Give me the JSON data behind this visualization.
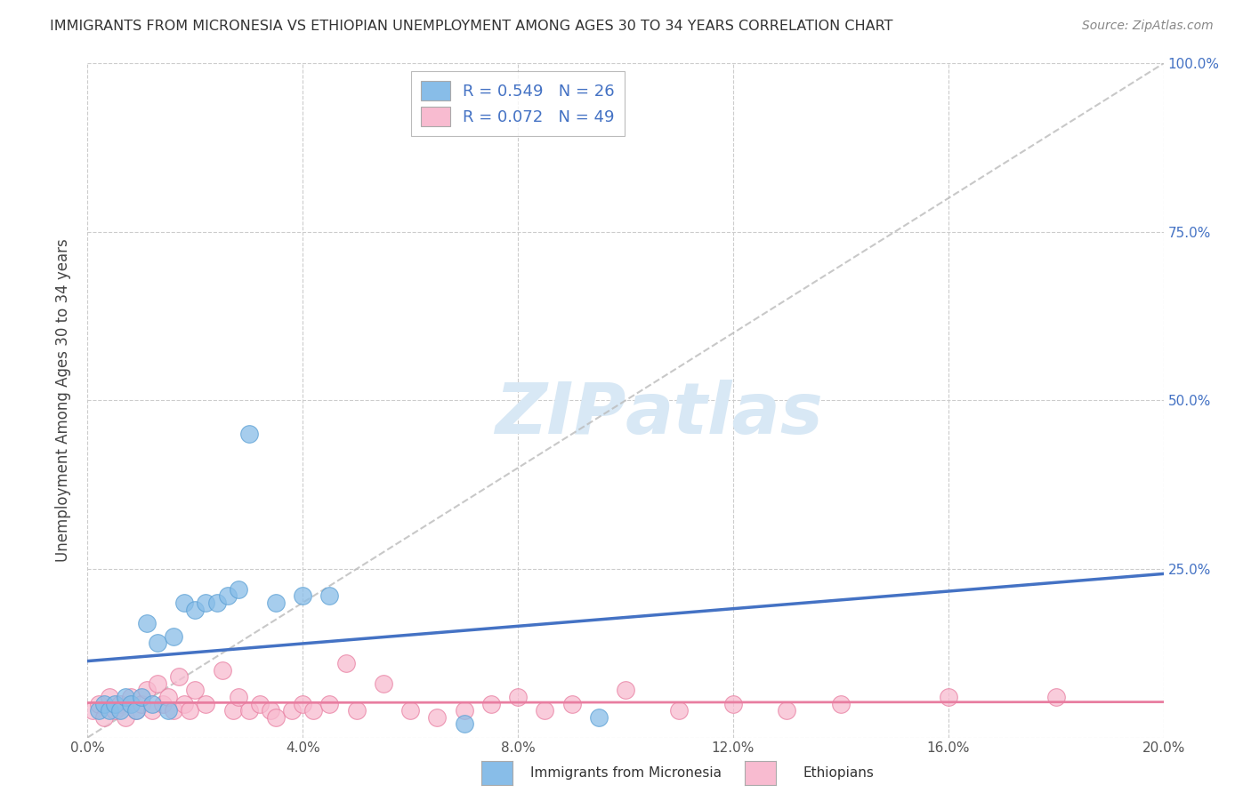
{
  "title": "IMMIGRANTS FROM MICRONESIA VS ETHIOPIAN UNEMPLOYMENT AMONG AGES 30 TO 34 YEARS CORRELATION CHART",
  "source": "Source: ZipAtlas.com",
  "ylabel": "Unemployment Among Ages 30 to 34 years",
  "xlabel_legend1": "Immigrants from Micronesia",
  "xlabel_legend2": "Ethiopians",
  "xlim": [
    0.0,
    0.2
  ],
  "ylim": [
    0.0,
    1.0
  ],
  "xticks": [
    0.0,
    0.04,
    0.08,
    0.12,
    0.16,
    0.2
  ],
  "yticks": [
    0.0,
    0.25,
    0.5,
    0.75,
    1.0
  ],
  "ytick_labels_right": [
    "25.0%",
    "50.0%",
    "75.0%",
    "100.0%"
  ],
  "grid_color": "#cccccc",
  "blue_color": "#88bde8",
  "blue_edge_color": "#5a9fd4",
  "blue_line_color": "#4472c4",
  "pink_color": "#f8bbd0",
  "pink_edge_color": "#e87da0",
  "pink_line_color": "#e87da0",
  "diag_color": "#bbbbbb",
  "watermark_color": "#d8e8f5",
  "R_blue": 0.549,
  "N_blue": 26,
  "R_pink": 0.072,
  "N_pink": 49,
  "blue_scatter_x": [
    0.002,
    0.003,
    0.004,
    0.005,
    0.006,
    0.007,
    0.008,
    0.009,
    0.01,
    0.011,
    0.012,
    0.013,
    0.015,
    0.016,
    0.018,
    0.02,
    0.022,
    0.024,
    0.026,
    0.028,
    0.03,
    0.035,
    0.04,
    0.045,
    0.07,
    0.095
  ],
  "blue_scatter_y": [
    0.04,
    0.05,
    0.04,
    0.05,
    0.04,
    0.06,
    0.05,
    0.04,
    0.06,
    0.17,
    0.05,
    0.14,
    0.04,
    0.15,
    0.2,
    0.19,
    0.2,
    0.2,
    0.21,
    0.22,
    0.45,
    0.2,
    0.21,
    0.21,
    0.02,
    0.03
  ],
  "pink_scatter_x": [
    0.001,
    0.002,
    0.003,
    0.004,
    0.005,
    0.006,
    0.007,
    0.008,
    0.009,
    0.01,
    0.011,
    0.012,
    0.013,
    0.014,
    0.015,
    0.016,
    0.017,
    0.018,
    0.019,
    0.02,
    0.022,
    0.025,
    0.027,
    0.028,
    0.03,
    0.032,
    0.034,
    0.035,
    0.038,
    0.04,
    0.042,
    0.045,
    0.048,
    0.05,
    0.055,
    0.06,
    0.065,
    0.07,
    0.075,
    0.08,
    0.085,
    0.09,
    0.1,
    0.11,
    0.12,
    0.13,
    0.14,
    0.16,
    0.18
  ],
  "pink_scatter_y": [
    0.04,
    0.05,
    0.03,
    0.06,
    0.04,
    0.05,
    0.03,
    0.06,
    0.04,
    0.05,
    0.07,
    0.04,
    0.08,
    0.05,
    0.06,
    0.04,
    0.09,
    0.05,
    0.04,
    0.07,
    0.05,
    0.1,
    0.04,
    0.06,
    0.04,
    0.05,
    0.04,
    0.03,
    0.04,
    0.05,
    0.04,
    0.05,
    0.11,
    0.04,
    0.08,
    0.04,
    0.03,
    0.04,
    0.05,
    0.06,
    0.04,
    0.05,
    0.07,
    0.04,
    0.05,
    0.04,
    0.05,
    0.06,
    0.06
  ]
}
